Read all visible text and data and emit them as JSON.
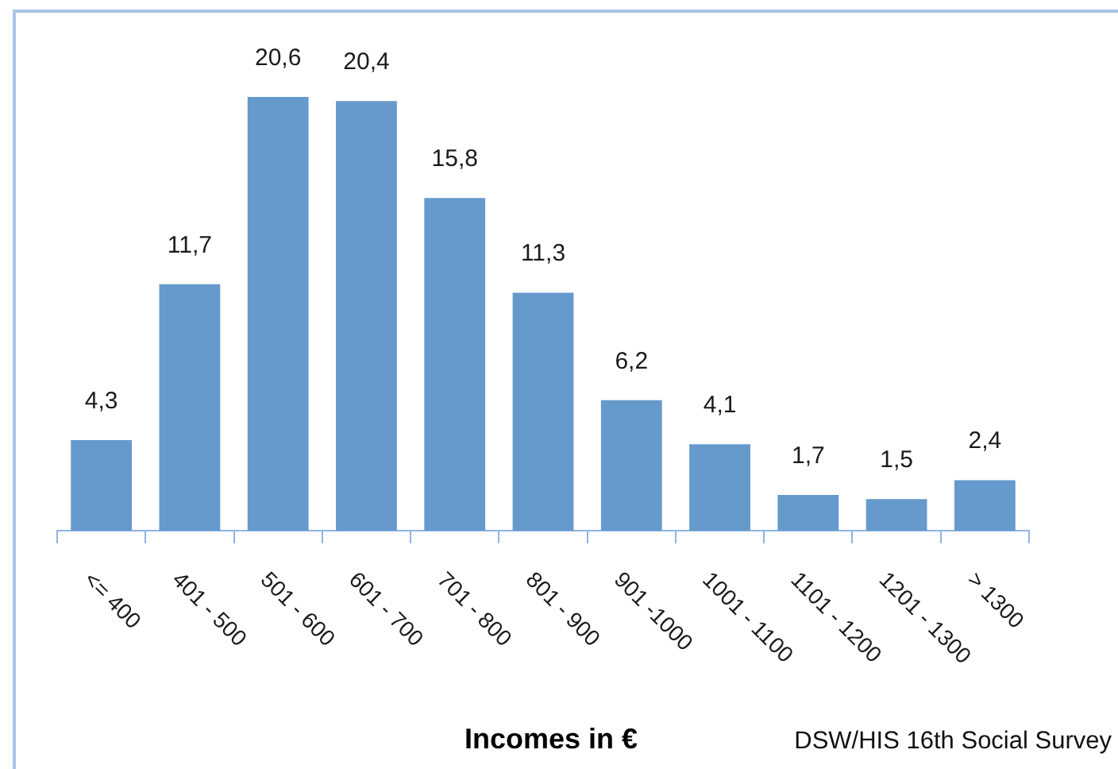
{
  "chart_data": {
    "type": "bar",
    "xlabel": "Incomes in €",
    "annotations": [
      "DSW/HIS 16th Social Survey"
    ],
    "categories": [
      "<= 400",
      "401 - 500",
      "501 - 600",
      "601 - 700",
      "701 - 800",
      "801 - 900",
      "901 -1000",
      "1001 - 1100",
      "1101 - 1200",
      "1201 - 1300",
      "> 1300"
    ],
    "values": [
      4.3,
      11.7,
      20.6,
      20.4,
      15.8,
      11.3,
      6.2,
      4.1,
      1.7,
      1.5,
      2.4
    ],
    "value_labels": [
      "4,3",
      "11,7",
      "20,6",
      "20,4",
      "15,8",
      "11,3",
      "6,2",
      "4,1",
      "1,7",
      "1,5",
      "2,4"
    ],
    "color": "#6699cc"
  }
}
